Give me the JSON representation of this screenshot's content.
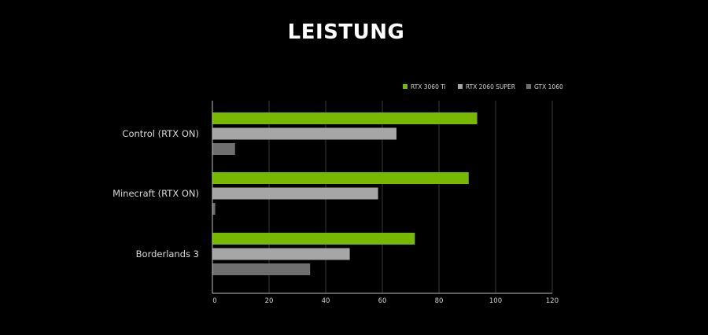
{
  "chart_data": {
    "type": "bar",
    "orientation": "horizontal",
    "title": "LEISTUNG",
    "categories": [
      "Control (RTX ON)",
      "Minecraft (RTX ON)",
      "Borderlands 3"
    ],
    "series": [
      {
        "name": "RTX 3060 Ti",
        "color": "#76b900",
        "values": [
          93.5,
          90.5,
          71.5
        ]
      },
      {
        "name": "RTX 2060 SUPER",
        "color": "#a6a6a6",
        "values": [
          65,
          58.5,
          48.5
        ]
      },
      {
        "name": "GTX 1060",
        "color": "#6f6f6f",
        "values": [
          8,
          1,
          34.5
        ]
      }
    ],
    "xlim": [
      0,
      120
    ],
    "xticks": [
      0,
      20,
      40,
      60,
      80,
      100,
      120
    ],
    "xtick_labels": [
      "0",
      "20",
      "40",
      "60",
      "80",
      "100",
      "120"
    ],
    "xlabel": "",
    "ylabel": "",
    "grid": "vertical",
    "legend_position": "top-right"
  }
}
